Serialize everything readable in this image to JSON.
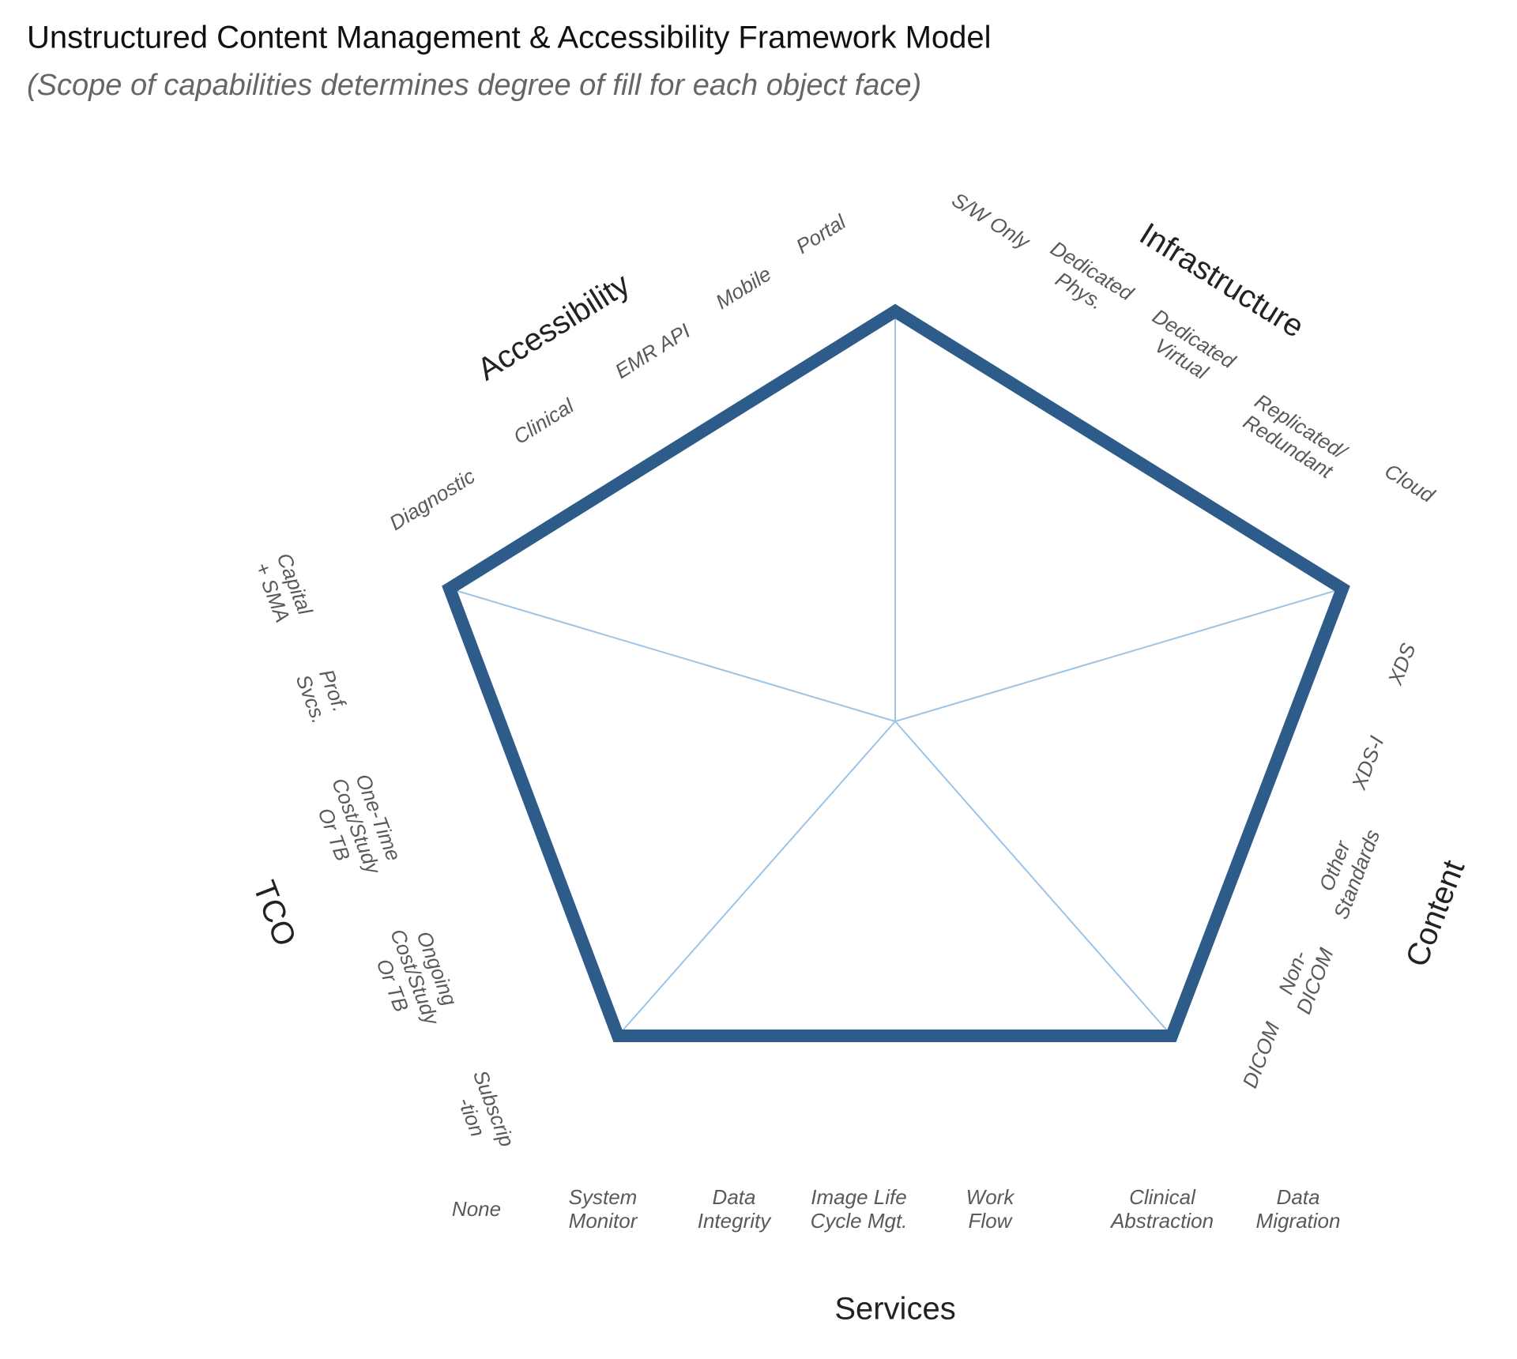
{
  "title": "Unstructured Content Management & Accessibility Framework Model",
  "subtitle": "(Scope of capabilities determines degree of fill for each object face)",
  "faces": [
    {
      "name": "Accessibility",
      "capabilities": [
        [
          "Diagnostic"
        ],
        [
          "Clinical"
        ],
        [
          "EMR API"
        ],
        [
          "Mobile"
        ],
        [
          "Portal"
        ]
      ]
    },
    {
      "name": "Infrastructure",
      "capabilities": [
        [
          "S/W Only"
        ],
        [
          "Dedicated",
          "Phys."
        ],
        [
          "Dedicated",
          "Virtual"
        ],
        [
          "Replicated/",
          "Redundant"
        ],
        [
          "Cloud"
        ]
      ]
    },
    {
      "name": "Content",
      "capabilities": [
        [
          "XDS"
        ],
        [
          "XDS-I"
        ],
        [
          "Other",
          "Standards"
        ],
        [
          "Non-",
          "DICOM"
        ],
        [
          "DICOM"
        ]
      ]
    },
    {
      "name": "Services",
      "capabilities": [
        [
          "None"
        ],
        [
          "System",
          "Monitor"
        ],
        [
          "Data",
          "Integrity"
        ],
        [
          "Image Life",
          "Cycle Mgt."
        ],
        [
          "Work",
          "Flow"
        ],
        [
          "Clinical",
          "Abstraction"
        ],
        [
          "Data",
          "Migration"
        ]
      ]
    },
    {
      "name": "TCO",
      "capabilities": [
        [
          "Capital",
          "+ SMA"
        ],
        [
          "Prof.",
          "Svcs."
        ],
        [
          "One-Time",
          "Cost/Study",
          "Or TB"
        ],
        [
          "Ongoing",
          "Cost/Study",
          "Or TB"
        ],
        [
          "Subscrip",
          "-tion"
        ]
      ]
    }
  ]
}
